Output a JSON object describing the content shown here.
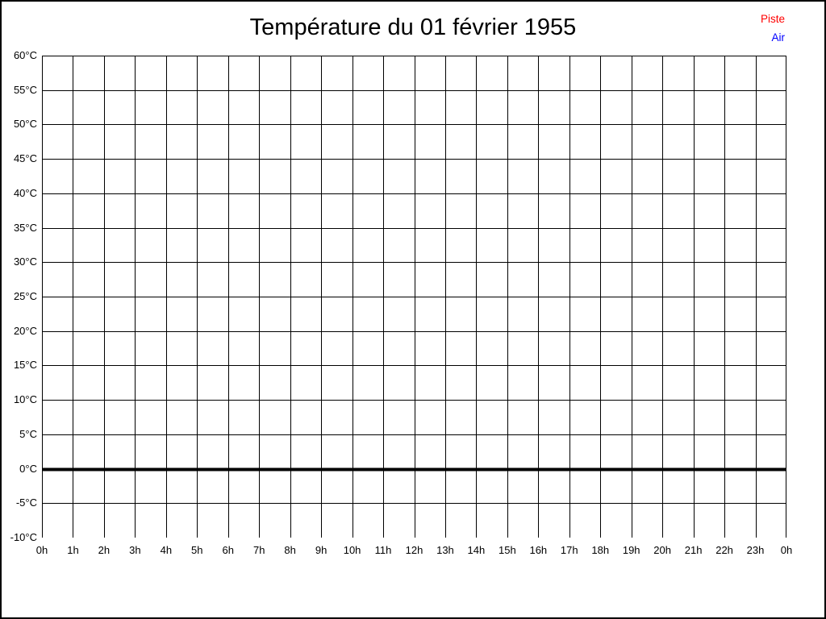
{
  "chart_data": {
    "type": "line",
    "title": "Température du 01 février 1955",
    "xlabel": "",
    "ylabel": "",
    "x_tick_labels": [
      "0h",
      "1h",
      "2h",
      "3h",
      "4h",
      "5h",
      "6h",
      "7h",
      "8h",
      "9h",
      "10h",
      "11h",
      "12h",
      "13h",
      "14h",
      "15h",
      "16h",
      "17h",
      "18h",
      "19h",
      "20h",
      "21h",
      "22h",
      "23h",
      "0h"
    ],
    "y_tick_labels": [
      "60°C",
      "55°C",
      "50°C",
      "45°C",
      "40°C",
      "35°C",
      "30°C",
      "25°C",
      "20°C",
      "15°C",
      "10°C",
      "5°C",
      "0°C",
      "-5°C",
      "-10°C"
    ],
    "ylim": [
      -10,
      60
    ],
    "y_step": 5,
    "grid": true,
    "grid_color": "#000000",
    "zero_line": {
      "value": 0,
      "color": "#000000",
      "thick": true
    },
    "legend_position": "top-right",
    "legend": [
      {
        "label": "Piste",
        "color": "#ff0000"
      },
      {
        "label": "Air",
        "color": "#0000ff"
      }
    ],
    "series": [
      {
        "name": "Piste",
        "color": "#ff0000",
        "values": []
      },
      {
        "name": "Air",
        "color": "#0000ff",
        "values": []
      }
    ]
  }
}
